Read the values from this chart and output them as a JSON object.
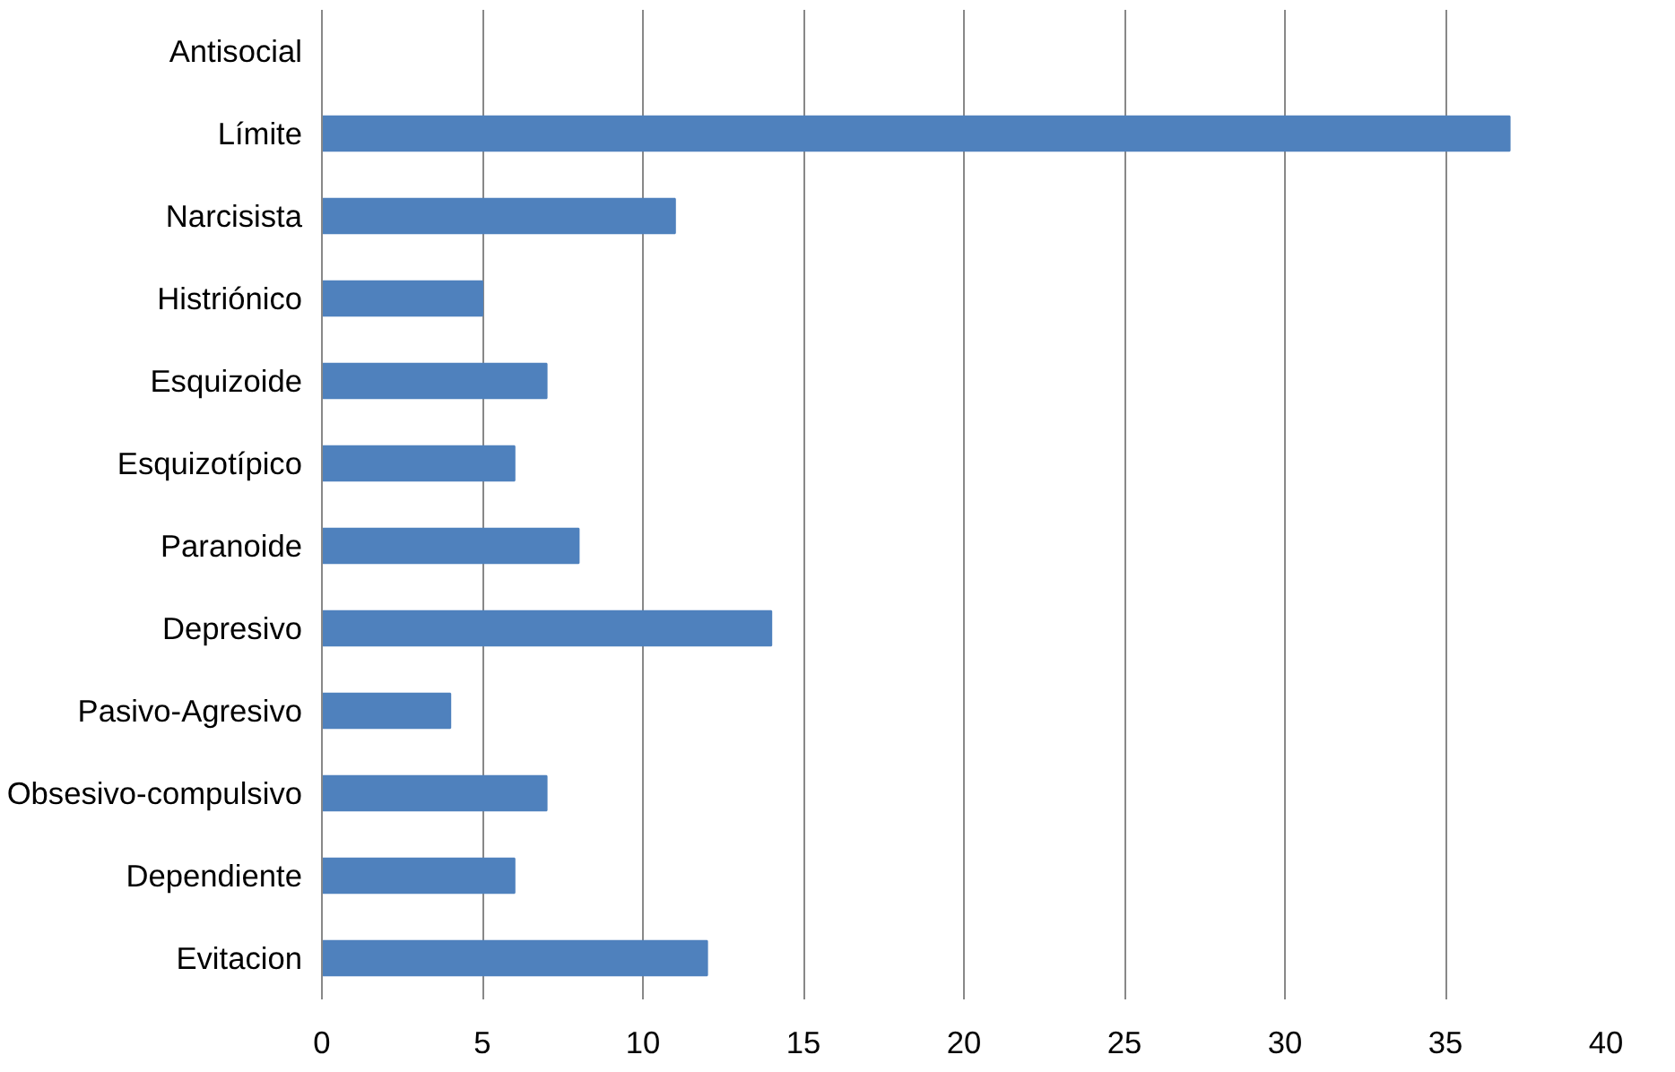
{
  "chart_data": {
    "type": "bar",
    "orientation": "horizontal",
    "categories": [
      "Antisocial",
      "Límite",
      "Narcisista",
      "Histriónico",
      "Esquizoide",
      "Esquizotípico",
      "Paranoide",
      "Depresivo",
      "Pasivo-Agresivo",
      "Obsesivo-compulsivo",
      "Dependiente",
      "Evitacion"
    ],
    "values": [
      0,
      37,
      11,
      5,
      7,
      6,
      8,
      14,
      4,
      7,
      6,
      12
    ],
    "color": "#4f81bd",
    "xlim": [
      0,
      40
    ],
    "xticks": [
      0,
      5,
      10,
      15,
      20,
      25,
      30,
      35,
      40
    ],
    "grid": "x"
  }
}
